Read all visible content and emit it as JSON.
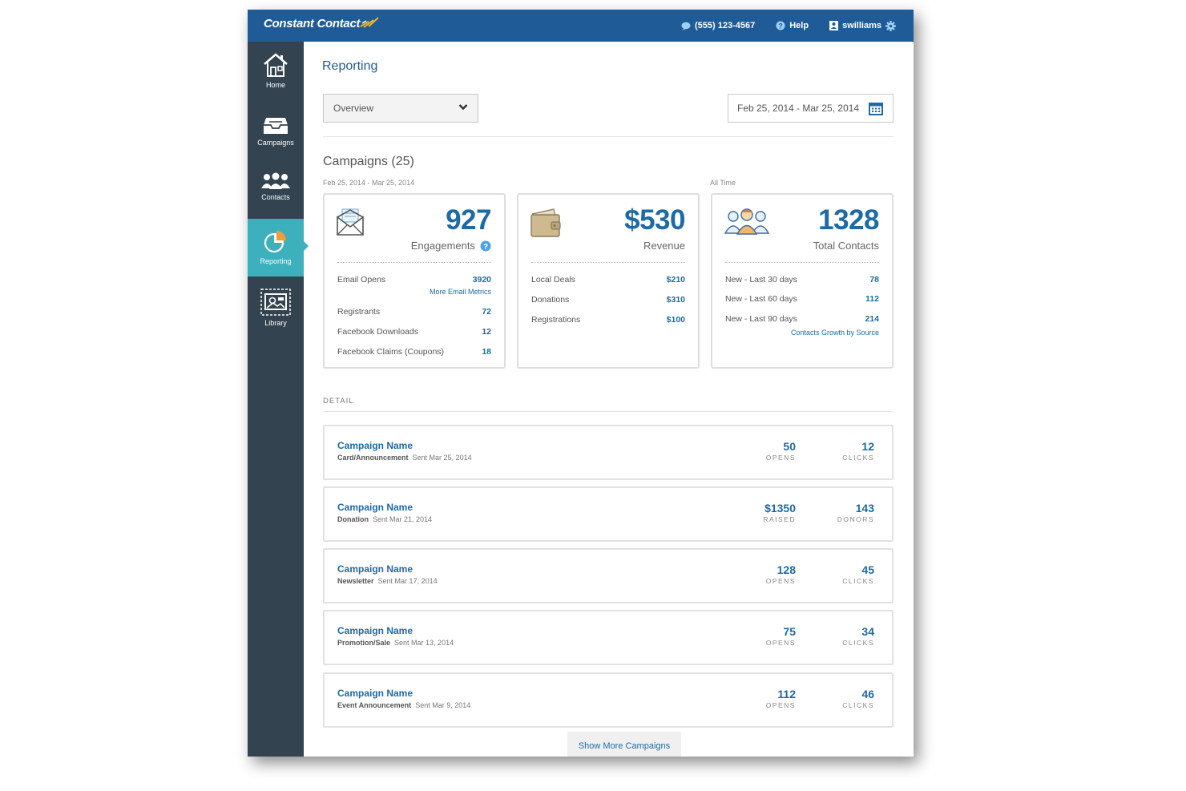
{
  "header": {
    "brand": "Constant Contact",
    "phone": "(555) 123-4567",
    "help": "Help",
    "user": "swilliams"
  },
  "sidebar": {
    "items": [
      {
        "label": "Home",
        "icon": "home-icon"
      },
      {
        "label": "Campaigns",
        "icon": "campaigns-icon"
      },
      {
        "label": "Contacts",
        "icon": "contacts-icon"
      },
      {
        "label": "Reporting",
        "icon": "pie-chart-icon",
        "active": true
      },
      {
        "label": "Library",
        "icon": "library-icon"
      }
    ]
  },
  "page": {
    "title": "Reporting",
    "view_select": "Overview",
    "date_range": "Feb 25, 2014 - Mar 25, 2014"
  },
  "summary": {
    "title": "Campaigns (25)",
    "range_label": "Feb 25, 2014 - Mar 25, 2014",
    "all_time_label": "All Time",
    "engagements": {
      "value": "927",
      "label": "Engagements",
      "rows": [
        {
          "label": "Email Opens",
          "value": "3920"
        },
        {
          "label": "Registrants",
          "value": "72"
        },
        {
          "label": "Facebook Downloads",
          "value": "12"
        },
        {
          "label": "Facebook Claims (Coupons)",
          "value": "18"
        }
      ],
      "link": "More Email Metrics"
    },
    "revenue": {
      "value": "$530",
      "label": "Revenue",
      "rows": [
        {
          "label": "Local Deals",
          "value": "$210"
        },
        {
          "label": "Donations",
          "value": "$310"
        },
        {
          "label": "Registrations",
          "value": "$100"
        }
      ]
    },
    "contacts": {
      "value": "1328",
      "label": "Total Contacts",
      "rows": [
        {
          "label": "New - Last 30 days",
          "value": "78"
        },
        {
          "label": "New - Last 60 days",
          "value": "112"
        },
        {
          "label": "New - Last 90 days",
          "value": "214"
        }
      ],
      "link": "Contacts Growth by Source"
    }
  },
  "detail": {
    "label": "DETAIL",
    "campaigns": [
      {
        "name": "Campaign Name",
        "type": "Card/Announcement",
        "sent": "Sent Mar 25, 2014",
        "s1": "50",
        "l1": "OPENS",
        "s2": "12",
        "l2": "CLICKS"
      },
      {
        "name": "Campaign Name",
        "type": "Donation",
        "sent": "Sent Mar 21, 2014",
        "s1": "$1350",
        "l1": "RAISED",
        "s2": "143",
        "l2": "DONORS"
      },
      {
        "name": "Campaign Name",
        "type": "Newsletter",
        "sent": "Sent Mar 17, 2014",
        "s1": "128",
        "l1": "OPENS",
        "s2": "45",
        "l2": "CLICKS"
      },
      {
        "name": "Campaign Name",
        "type": "Promotion/Sale",
        "sent": "Sent Mar 13, 2014",
        "s1": "75",
        "l1": "OPENS",
        "s2": "34",
        "l2": "CLICKS"
      },
      {
        "name": "Campaign Name",
        "type": "Event Announcement",
        "sent": "Sent Mar 9, 2014",
        "s1": "112",
        "l1": "OPENS",
        "s2": "46",
        "l2": "CLICKS"
      }
    ],
    "show_more": "Show More Campaigns"
  },
  "colors": {
    "topbar": "#1f5b96",
    "sidebar": "#33434f",
    "active": "#3cb0bc",
    "accent": "#1d6aa5"
  }
}
